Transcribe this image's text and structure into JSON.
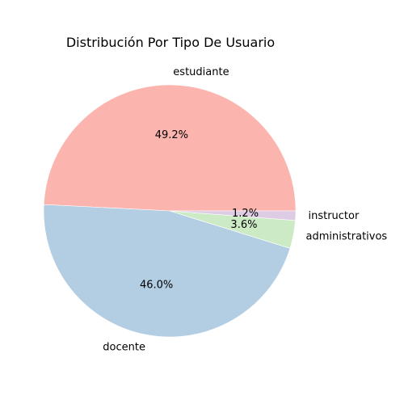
{
  "chart_data": {
    "type": "pie",
    "title": "Distribución Por Tipo De Usuario",
    "start_angle_deg": 0,
    "direction": "counterclockwise",
    "slices": [
      {
        "label": "estudiante",
        "value": 49.2,
        "pct_text": "49.2%",
        "color": "#fbb4ae"
      },
      {
        "label": "docente",
        "value": 46.0,
        "pct_text": "46.0%",
        "color": "#b3cde3"
      },
      {
        "label": "administrativos",
        "value": 3.6,
        "pct_text": "3.6%",
        "color": "#ccebc5"
      },
      {
        "label": "instructor",
        "value": 1.2,
        "pct_text": "1.2%",
        "color": "#decbe4"
      }
    ]
  }
}
